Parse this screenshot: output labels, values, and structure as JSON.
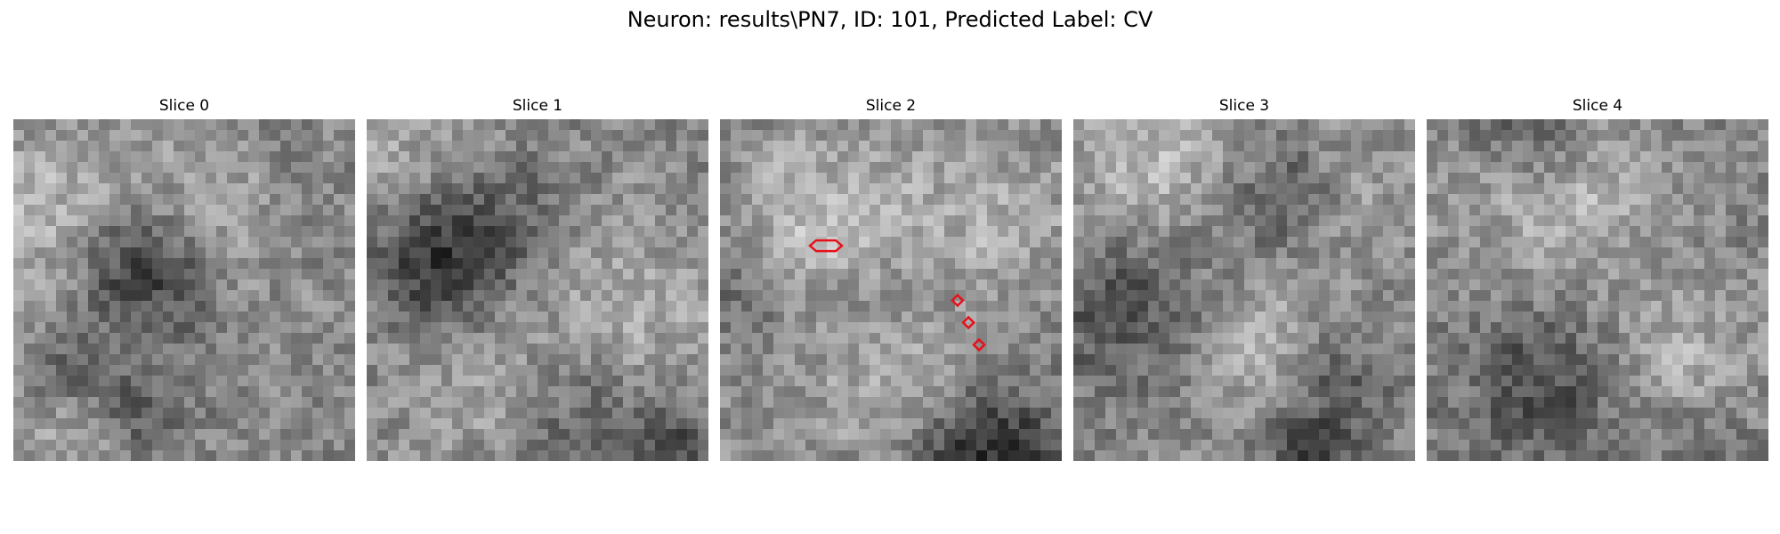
{
  "figure": {
    "title": "Neuron: results\\PN7, ID: 101, Predicted Label: CV"
  },
  "panels": [
    {
      "title": "Slice 0",
      "seed": 11,
      "light_blobs": [
        [
          0.15,
          0.3,
          6,
          70
        ],
        [
          0.5,
          0.25,
          5,
          40
        ],
        [
          0.2,
          0.9,
          5,
          40
        ]
      ],
      "dark_blobs": [
        [
          0.3,
          0.35,
          5,
          -70
        ],
        [
          0.38,
          0.45,
          4,
          -60
        ],
        [
          0.35,
          0.85,
          3,
          -70
        ],
        [
          0.15,
          0.7,
          3,
          -50
        ]
      ],
      "markers": []
    },
    {
      "title": "Slice 1",
      "seed": 23,
      "light_blobs": [
        [
          0.15,
          0.15,
          7,
          55
        ],
        [
          0.7,
          0.55,
          7,
          45
        ],
        [
          0.35,
          0.8,
          5,
          35
        ]
      ],
      "dark_blobs": [
        [
          0.3,
          0.3,
          6,
          -80
        ],
        [
          0.15,
          0.4,
          4,
          -60
        ],
        [
          0.6,
          0.85,
          5,
          -55
        ],
        [
          0.9,
          0.95,
          3,
          -60
        ]
      ],
      "markers": []
    },
    {
      "title": "Slice 2",
      "seed": 37,
      "light_blobs": [
        [
          0.3,
          0.3,
          6,
          60
        ],
        [
          0.55,
          0.75,
          6,
          60
        ],
        [
          0.8,
          0.25,
          5,
          35
        ]
      ],
      "dark_blobs": [
        [
          0.75,
          0.95,
          5,
          -110
        ],
        [
          0.45,
          0.55,
          4,
          -40
        ],
        [
          0.05,
          0.5,
          4,
          -35
        ]
      ],
      "markers": [
        {
          "shape": "hexagon",
          "x": 0.31,
          "y": 0.37
        },
        {
          "shape": "diamond",
          "x": 0.695,
          "y": 0.53
        },
        {
          "shape": "diamond",
          "x": 0.727,
          "y": 0.595
        },
        {
          "shape": "diamond",
          "x": 0.758,
          "y": 0.66
        }
      ]
    },
    {
      "title": "Slice 3",
      "seed": 51,
      "light_blobs": [
        [
          0.2,
          0.15,
          6,
          60
        ],
        [
          0.55,
          0.65,
          5,
          50
        ],
        [
          0.8,
          0.2,
          4,
          30
        ]
      ],
      "dark_blobs": [
        [
          0.15,
          0.5,
          6,
          -60
        ],
        [
          0.6,
          0.2,
          4,
          -50
        ],
        [
          0.75,
          0.75,
          4,
          -55
        ],
        [
          0.65,
          0.97,
          3,
          -60
        ]
      ],
      "markers": []
    },
    {
      "title": "Slice 4",
      "seed": 67,
      "light_blobs": [
        [
          0.35,
          0.18,
          6,
          65
        ],
        [
          0.8,
          0.85,
          4,
          40
        ],
        [
          0.7,
          0.6,
          4,
          30
        ]
      ],
      "dark_blobs": [
        [
          0.3,
          0.05,
          4,
          -70
        ],
        [
          0.3,
          0.75,
          5,
          -60
        ],
        [
          0.8,
          0.97,
          4,
          -60
        ]
      ],
      "markers": []
    }
  ],
  "colors": {
    "marker": "#e8101a",
    "colormap": "gray"
  }
}
